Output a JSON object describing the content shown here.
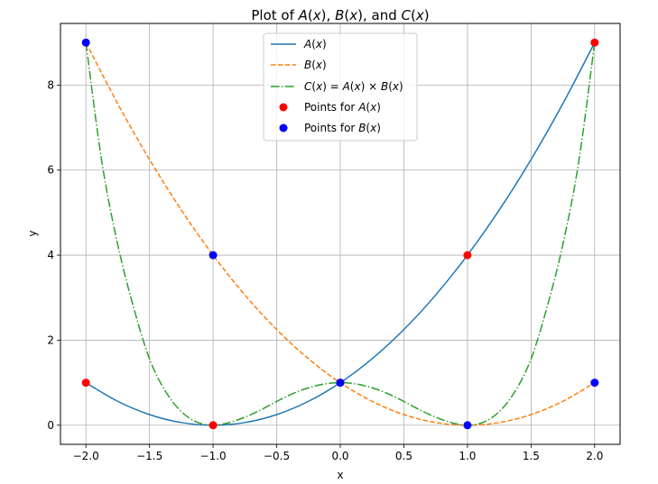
{
  "chart_data": {
    "type": "line",
    "title": "Plot of A(x), B(x), and C(x)",
    "xlabel": "x",
    "ylabel": "y",
    "xlim": [
      -2.2,
      2.2
    ],
    "ylim": [
      -0.45,
      9.45
    ],
    "xticks": [
      -2.0,
      -1.5,
      -1.0,
      -0.5,
      0.0,
      0.5,
      1.0,
      1.5,
      2.0
    ],
    "xtick_labels": [
      "−2.0",
      "−1.5",
      "−1.0",
      "−0.5",
      "0.0",
      "0.5",
      "1.0",
      "1.5",
      "2.0"
    ],
    "yticks": [
      0,
      2,
      4,
      6,
      8
    ],
    "ytick_labels": [
      "0",
      "2",
      "4",
      "6",
      "8"
    ],
    "grid": true,
    "legend": "top-center",
    "series": [
      {
        "name": "A(x)",
        "legend": "A(x)",
        "style": "solid",
        "color": "#1f77b4",
        "x": [
          -2.0,
          -1.75,
          -1.5,
          -1.25,
          -1.0,
          -0.75,
          -0.5,
          -0.25,
          0.0,
          0.25,
          0.5,
          0.75,
          1.0,
          1.25,
          1.5,
          1.75,
          2.0
        ],
        "y": [
          1.0,
          0.5625,
          0.25,
          0.0625,
          0.0,
          0.0625,
          0.25,
          0.5625,
          1.0,
          1.5625,
          2.25,
          3.0625,
          4.0,
          5.0625,
          6.25,
          7.5625,
          9.0
        ]
      },
      {
        "name": "B(x)",
        "legend": "B(x)",
        "style": "dashed",
        "color": "#ff7f0e",
        "x": [
          -2.0,
          -1.75,
          -1.5,
          -1.25,
          -1.0,
          -0.75,
          -0.5,
          -0.25,
          0.0,
          0.25,
          0.5,
          0.75,
          1.0,
          1.25,
          1.5,
          1.75,
          2.0
        ],
        "y": [
          9.0,
          7.5625,
          6.25,
          5.0625,
          4.0,
          3.0625,
          2.25,
          1.5625,
          1.0,
          0.5625,
          0.25,
          0.0625,
          0.0,
          0.0625,
          0.25,
          0.5625,
          1.0
        ]
      },
      {
        "name": "C(x)",
        "legend": "C(x) = A(x) × B(x)",
        "style": "dashdot",
        "color": "#2ca02c",
        "x": [
          -2.0,
          -1.875,
          -1.75,
          -1.625,
          -1.5,
          -1.375,
          -1.25,
          -1.125,
          -1.0,
          -0.875,
          -0.75,
          -0.625,
          -0.5,
          -0.375,
          -0.25,
          -0.125,
          0.0,
          0.125,
          0.25,
          0.375,
          0.5,
          0.625,
          0.75,
          0.875,
          1.0,
          1.125,
          1.25,
          1.375,
          1.5,
          1.625,
          1.75,
          1.875,
          2.0
        ],
        "y": [
          9.0,
          6.2,
          4.25,
          2.77,
          1.56,
          0.8,
          0.32,
          0.07,
          0.0,
          0.06,
          0.19,
          0.36,
          0.56,
          0.74,
          0.88,
          0.97,
          1.0,
          0.97,
          0.88,
          0.74,
          0.56,
          0.36,
          0.19,
          0.06,
          0.0,
          0.07,
          0.32,
          0.8,
          1.56,
          2.77,
          4.25,
          6.2,
          9.0
        ]
      }
    ],
    "point_sets": [
      {
        "name": "Points for A(x)",
        "color": "#ff0000",
        "x": [
          -2,
          -1,
          0,
          1,
          2
        ],
        "y": [
          1,
          0,
          1,
          4,
          9
        ]
      },
      {
        "name": "Points for B(x)",
        "color": "#0000ff",
        "x": [
          -2,
          -1,
          0,
          1,
          2
        ],
        "y": [
          9,
          4,
          1,
          0,
          1
        ]
      }
    ]
  }
}
